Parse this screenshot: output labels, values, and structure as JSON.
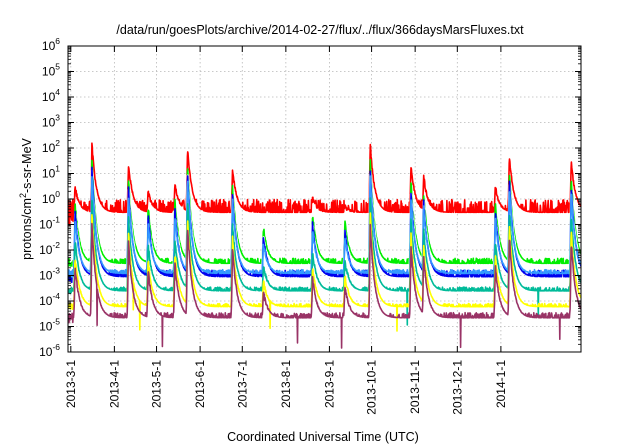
{
  "chart_data": {
    "type": "line",
    "title": "/data/run/goesPlots/archive/2014-02-27/flux/../flux/366daysMarsFluxes.txt",
    "xlabel": "Coordinated Universal Time (UTC)",
    "ylabel": {
      "prefix": "protons/cm",
      "exponent": "2",
      "suffix": "-s-sr-MeV"
    },
    "y_scale": "log",
    "ylim": [
      1e-06,
      1000000.0
    ],
    "xlim": [
      "2013-02-27",
      "2014-02-27"
    ],
    "grid": true,
    "legend": "none",
    "y_ticks": [
      {
        "base": "10",
        "exp": "-6"
      },
      {
        "base": "10",
        "exp": "-5"
      },
      {
        "base": "10",
        "exp": "-4"
      },
      {
        "base": "10",
        "exp": "-3"
      },
      {
        "base": "10",
        "exp": "-2"
      },
      {
        "base": "10",
        "exp": "-1"
      },
      {
        "base": "10",
        "exp": "0"
      },
      {
        "base": "10",
        "exp": "1"
      },
      {
        "base": "10",
        "exp": "2"
      },
      {
        "base": "10",
        "exp": "3"
      },
      {
        "base": "10",
        "exp": "4"
      },
      {
        "base": "10",
        "exp": "5"
      },
      {
        "base": "10",
        "exp": "6"
      }
    ],
    "x_ticks": [
      {
        "date": "2013-03-01",
        "label": "2013-3-1"
      },
      {
        "date": "2013-04-01",
        "label": "2013-4-1"
      },
      {
        "date": "2013-05-01",
        "label": "2013-5-1"
      },
      {
        "date": "2013-06-01",
        "label": "2013-6-1"
      },
      {
        "date": "2013-07-01",
        "label": "2013-7-1"
      },
      {
        "date": "2013-08-01",
        "label": "2013-8-1"
      },
      {
        "date": "2013-09-01",
        "label": "2013-9-1"
      },
      {
        "date": "2013-10-01",
        "label": "2013-10-1"
      },
      {
        "date": "2013-11-01",
        "label": "2013-11-1"
      },
      {
        "date": "2013-12-01",
        "label": "2013-12-1"
      },
      {
        "date": "2014-01-01",
        "label": "2014-1-1"
      }
    ],
    "events": [
      {
        "date": "2013-03-04",
        "peak": 3
      },
      {
        "date": "2013-03-16",
        "peak": 150
      },
      {
        "date": "2013-04-11",
        "peak": 25
      },
      {
        "date": "2013-04-25",
        "peak": 2
      },
      {
        "date": "2013-05-14",
        "peak": 4
      },
      {
        "date": "2013-05-23",
        "peak": 120
      },
      {
        "date": "2013-06-24",
        "peak": 15
      },
      {
        "date": "2013-07-16",
        "peak": 0.3
      },
      {
        "date": "2013-08-20",
        "peak": 1
      },
      {
        "date": "2013-09-12",
        "peak": 0.5
      },
      {
        "date": "2013-09-30",
        "peak": 150
      },
      {
        "date": "2013-10-29",
        "peak": 20
      },
      {
        "date": "2013-11-07",
        "peak": 8
      },
      {
        "date": "2013-12-28",
        "peak": 3
      },
      {
        "date": "2014-01-07",
        "peak": 50
      },
      {
        "date": "2014-02-20",
        "peak": 30
      }
    ],
    "series": [
      {
        "color": "#ff0000",
        "baseline": 0.3,
        "spread": 0.5,
        "ratio": 1
      },
      {
        "color": "#00ee00",
        "baseline": 0.003,
        "spread": 0.2,
        "ratio": 0.25
      },
      {
        "color": "#ffffff",
        "baseline": 0.0018,
        "spread": 0.12,
        "ratio": 0.1
      },
      {
        "color": "#0000ee",
        "baseline": 0.0009,
        "spread": 0.25,
        "ratio": 0.12
      },
      {
        "color": "#3399ff",
        "baseline": 0.0012,
        "spread": 0.15,
        "ratio": 0.06
      },
      {
        "color": "#00bb99",
        "baseline": 0.00025,
        "spread": 0.15,
        "ratio": 0.008
      },
      {
        "color": "#ffff00",
        "baseline": 6e-05,
        "spread": 0.12,
        "ratio": 0.002
      },
      {
        "color": "#993366",
        "baseline": 2.2e-05,
        "spread": 0.2,
        "ratio": 0.0008
      }
    ]
  }
}
